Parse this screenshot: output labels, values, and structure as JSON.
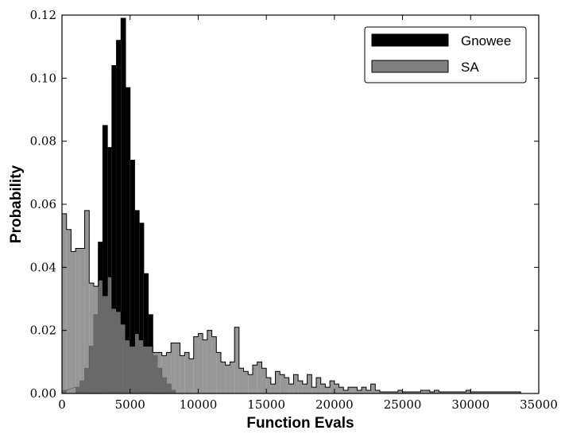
{
  "chart_data": {
    "type": "histogram",
    "xlabel": "Function Evals",
    "ylabel": "Probability",
    "xlim": [
      0,
      35000
    ],
    "ylim": [
      0,
      0.12
    ],
    "xticks": [
      0,
      5000,
      10000,
      15000,
      20000,
      25000,
      30000,
      35000
    ],
    "xtick_labels": [
      "0",
      "5000",
      "10000",
      "15000",
      "20000",
      "25000",
      "30000",
      "35000"
    ],
    "yticks": [
      0,
      0.02,
      0.04,
      0.06,
      0.08,
      0.1,
      0.12
    ],
    "ytick_labels": [
      "0.00",
      "0.02",
      "0.04",
      "0.06",
      "0.08",
      "0.10",
      "0.12"
    ],
    "grid": false,
    "legend_position": "top-right",
    "series": [
      {
        "name": "Gnowee",
        "color": "#000000",
        "alpha": 1.0,
        "bin_width": 333,
        "bins": [
          {
            "x0": 0,
            "value": 0.001
          },
          {
            "x0": 1000,
            "value": 0.002
          },
          {
            "x0": 1333,
            "value": 0.004
          },
          {
            "x0": 1667,
            "value": 0.008
          },
          {
            "x0": 2000,
            "value": 0.015
          },
          {
            "x0": 2333,
            "value": 0.025
          },
          {
            "x0": 2667,
            "value": 0.048
          },
          {
            "x0": 3000,
            "value": 0.085
          },
          {
            "x0": 3333,
            "value": 0.078
          },
          {
            "x0": 3667,
            "value": 0.104
          },
          {
            "x0": 4000,
            "value": 0.112
          },
          {
            "x0": 4333,
            "value": 0.119
          },
          {
            "x0": 4667,
            "value": 0.097
          },
          {
            "x0": 5000,
            "value": 0.074
          },
          {
            "x0": 5333,
            "value": 0.058
          },
          {
            "x0": 5667,
            "value": 0.054
          },
          {
            "x0": 6000,
            "value": 0.038
          },
          {
            "x0": 6333,
            "value": 0.025
          },
          {
            "x0": 6667,
            "value": 0.012
          },
          {
            "x0": 7000,
            "value": 0.008
          },
          {
            "x0": 7333,
            "value": 0.005
          },
          {
            "x0": 7667,
            "value": 0.003
          },
          {
            "x0": 8000,
            "value": 0.001
          }
        ]
      },
      {
        "name": "SA",
        "color": "#808080",
        "alpha": 0.82,
        "bin_width": 333,
        "bins": [
          {
            "x0": 0,
            "value": 0.057
          },
          {
            "x0": 333,
            "value": 0.052
          },
          {
            "x0": 667,
            "value": 0.045
          },
          {
            "x0": 1000,
            "value": 0.046
          },
          {
            "x0": 1333,
            "value": 0.046
          },
          {
            "x0": 1667,
            "value": 0.058
          },
          {
            "x0": 2000,
            "value": 0.035
          },
          {
            "x0": 2333,
            "value": 0.034
          },
          {
            "x0": 2667,
            "value": 0.036
          },
          {
            "x0": 3000,
            "value": 0.031
          },
          {
            "x0": 3333,
            "value": 0.037
          },
          {
            "x0": 3667,
            "value": 0.027
          },
          {
            "x0": 4000,
            "value": 0.026
          },
          {
            "x0": 4333,
            "value": 0.022
          },
          {
            "x0": 4667,
            "value": 0.017
          },
          {
            "x0": 5000,
            "value": 0.015
          },
          {
            "x0": 5333,
            "value": 0.019
          },
          {
            "x0": 5667,
            "value": 0.017
          },
          {
            "x0": 6000,
            "value": 0.015
          },
          {
            "x0": 6333,
            "value": 0.015
          },
          {
            "x0": 6667,
            "value": 0.013
          },
          {
            "x0": 7000,
            "value": 0.013
          },
          {
            "x0": 7333,
            "value": 0.012
          },
          {
            "x0": 7667,
            "value": 0.013
          },
          {
            "x0": 8000,
            "value": 0.016
          },
          {
            "x0": 8333,
            "value": 0.016
          },
          {
            "x0": 8667,
            "value": 0.012
          },
          {
            "x0": 9000,
            "value": 0.013
          },
          {
            "x0": 9333,
            "value": 0.011
          },
          {
            "x0": 9667,
            "value": 0.018
          },
          {
            "x0": 10000,
            "value": 0.019
          },
          {
            "x0": 10333,
            "value": 0.017
          },
          {
            "x0": 10667,
            "value": 0.02
          },
          {
            "x0": 11000,
            "value": 0.018
          },
          {
            "x0": 11333,
            "value": 0.013
          },
          {
            "x0": 11667,
            "value": 0.01
          },
          {
            "x0": 12000,
            "value": 0.009
          },
          {
            "x0": 12333,
            "value": 0.01
          },
          {
            "x0": 12667,
            "value": 0.021
          },
          {
            "x0": 13000,
            "value": 0.008
          },
          {
            "x0": 13333,
            "value": 0.007
          },
          {
            "x0": 13667,
            "value": 0.006
          },
          {
            "x0": 14000,
            "value": 0.009
          },
          {
            "x0": 14333,
            "value": 0.01
          },
          {
            "x0": 14667,
            "value": 0.008
          },
          {
            "x0": 15000,
            "value": 0.005
          },
          {
            "x0": 15333,
            "value": 0.003
          },
          {
            "x0": 15667,
            "value": 0.007
          },
          {
            "x0": 16000,
            "value": 0.006
          },
          {
            "x0": 16333,
            "value": 0.005
          },
          {
            "x0": 16667,
            "value": 0.003
          },
          {
            "x0": 17000,
            "value": 0.006
          },
          {
            "x0": 17333,
            "value": 0.004
          },
          {
            "x0": 17667,
            "value": 0.003
          },
          {
            "x0": 18000,
            "value": 0.006
          },
          {
            "x0": 18333,
            "value": 0.002
          },
          {
            "x0": 18667,
            "value": 0.005
          },
          {
            "x0": 19000,
            "value": 0.003
          },
          {
            "x0": 19333,
            "value": 0.002
          },
          {
            "x0": 19667,
            "value": 0.004
          },
          {
            "x0": 20000,
            "value": 0.003
          },
          {
            "x0": 20333,
            "value": 0.002
          },
          {
            "x0": 20667,
            "value": 0.001
          },
          {
            "x0": 21000,
            "value": 0.002
          },
          {
            "x0": 21333,
            "value": 0.002
          },
          {
            "x0": 21667,
            "value": 0.001
          },
          {
            "x0": 22000,
            "value": 0.002
          },
          {
            "x0": 22333,
            "value": 0.001
          },
          {
            "x0": 22667,
            "value": 0.003
          },
          {
            "x0": 23000,
            "value": 0.001
          },
          {
            "x0": 23333,
            "value": 0.0005
          },
          {
            "x0": 23667,
            "value": 0.0005
          },
          {
            "x0": 24000,
            "value": 0.0005
          },
          {
            "x0": 24333,
            "value": 0.0005
          },
          {
            "x0": 24667,
            "value": 0.001
          },
          {
            "x0": 25000,
            "value": 0.0005
          },
          {
            "x0": 25333,
            "value": 0.0005
          },
          {
            "x0": 25667,
            "value": 0.0005
          },
          {
            "x0": 26000,
            "value": 0.0005
          },
          {
            "x0": 26333,
            "value": 0.001
          },
          {
            "x0": 26667,
            "value": 0.001
          },
          {
            "x0": 27000,
            "value": 0.0005
          },
          {
            "x0": 27333,
            "value": 0.001
          },
          {
            "x0": 27667,
            "value": 0.0005
          },
          {
            "x0": 28000,
            "value": 0.0005
          },
          {
            "x0": 28333,
            "value": 0.0005
          },
          {
            "x0": 28667,
            "value": 0.0005
          },
          {
            "x0": 29000,
            "value": 0.0005
          },
          {
            "x0": 29333,
            "value": 0.0005
          },
          {
            "x0": 29667,
            "value": 0.001
          },
          {
            "x0": 30000,
            "value": 0.0005
          },
          {
            "x0": 30333,
            "value": 0.0005
          },
          {
            "x0": 30667,
            "value": 0.0005
          },
          {
            "x0": 31000,
            "value": 0.0005
          },
          {
            "x0": 31333,
            "value": 0.0005
          },
          {
            "x0": 31667,
            "value": 0.0005
          },
          {
            "x0": 32000,
            "value": 0.0005
          },
          {
            "x0": 32333,
            "value": 0.0005
          },
          {
            "x0": 32667,
            "value": 0.0005
          },
          {
            "x0": 33000,
            "value": 0.0005
          },
          {
            "x0": 33333,
            "value": 0.0005
          }
        ]
      }
    ]
  }
}
